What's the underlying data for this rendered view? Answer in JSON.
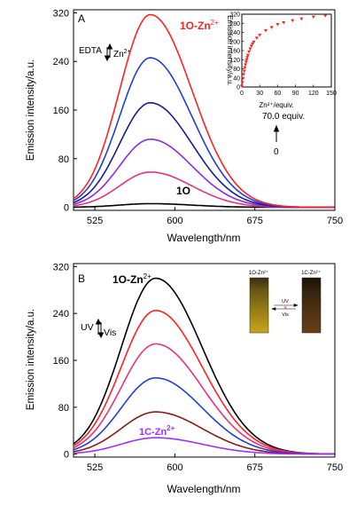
{
  "chart_data": [
    {
      "panel": "A",
      "type": "line",
      "xlabel": "Wavelength/nm",
      "ylabel": "Emission intensity/a.u.",
      "xlim": [
        505,
        750
      ],
      "ylim": [
        -5,
        325
      ],
      "xticks": [
        525,
        600,
        675,
        750
      ],
      "yticks": [
        0,
        80,
        160,
        240,
        320
      ],
      "peak_x": 577,
      "series": [
        {
          "peak": 6,
          "color": "#000000"
        },
        {
          "peak": 58,
          "color": "#e8337a"
        },
        {
          "peak": 112,
          "color": "#8a2be2"
        },
        {
          "peak": 172,
          "color": "#1a1a8c"
        },
        {
          "peak": 246,
          "color": "#1f3fd6"
        },
        {
          "peak": 317,
          "color": "#ff2222"
        }
      ],
      "annotations": {
        "top_label": "1O-Zn",
        "top_sup": "2+",
        "bottom_label": "1O",
        "edta": "EDTA",
        "zn": "Zn",
        "zn_sup": "2+",
        "equiv_top": "70.0 equiv.",
        "equiv_bottom": "0"
      },
      "inset": {
        "type": "scatter",
        "xlabel": "Zn²⁺/equiv.",
        "ylabel": "Emission intensity/a.u.",
        "xlim": [
          0,
          150
        ],
        "ylim": [
          0,
          320
        ],
        "xticks": [
          0,
          30,
          60,
          90,
          120,
          150
        ],
        "yticks": [
          0,
          40,
          80,
          120,
          160,
          200,
          240,
          280,
          320
        ],
        "x": [
          0,
          1,
          2,
          3,
          4,
          5,
          6,
          7,
          8,
          9,
          10,
          12,
          14,
          16,
          18,
          20,
          25,
          30,
          40,
          50,
          60,
          70,
          85,
          100,
          120,
          140
        ],
        "y": [
          4,
          20,
          38,
          55,
          70,
          85,
          98,
          110,
          120,
          130,
          140,
          155,
          168,
          180,
          190,
          198,
          215,
          228,
          248,
          262,
          275,
          283,
          292,
          300,
          308,
          313
        ],
        "color": "#ff2222"
      }
    },
    {
      "panel": "B",
      "type": "line",
      "xlabel": "Wavelength/nm",
      "ylabel": "Emission intensity/a.u.",
      "xlim": [
        505,
        750
      ],
      "ylim": [
        -5,
        325
      ],
      "xticks": [
        525,
        600,
        675,
        750
      ],
      "yticks": [
        0,
        80,
        160,
        240,
        320
      ],
      "peak_x": 582,
      "series": [
        {
          "peak": 300,
          "color": "#000000"
        },
        {
          "peak": 245,
          "color": "#ff2222"
        },
        {
          "peak": 188,
          "color": "#e8337a"
        },
        {
          "peak": 130,
          "color": "#1f3fd6"
        },
        {
          "peak": 72,
          "color": "#8b1a1a"
        },
        {
          "peak": 28,
          "color": "#9b30ff"
        }
      ],
      "annotations": {
        "top_label": "1O-Zn",
        "top_sup": "2+",
        "bottom_label": "1C-Zn",
        "bottom_sup": "2+",
        "uv": "UV",
        "vis": "Vis",
        "vial1_label": "1O-Zn²⁺",
        "vial2_label": "1C-Zn²⁺",
        "arrow_uv": "UV",
        "arrow_vis": "Vis"
      }
    }
  ]
}
